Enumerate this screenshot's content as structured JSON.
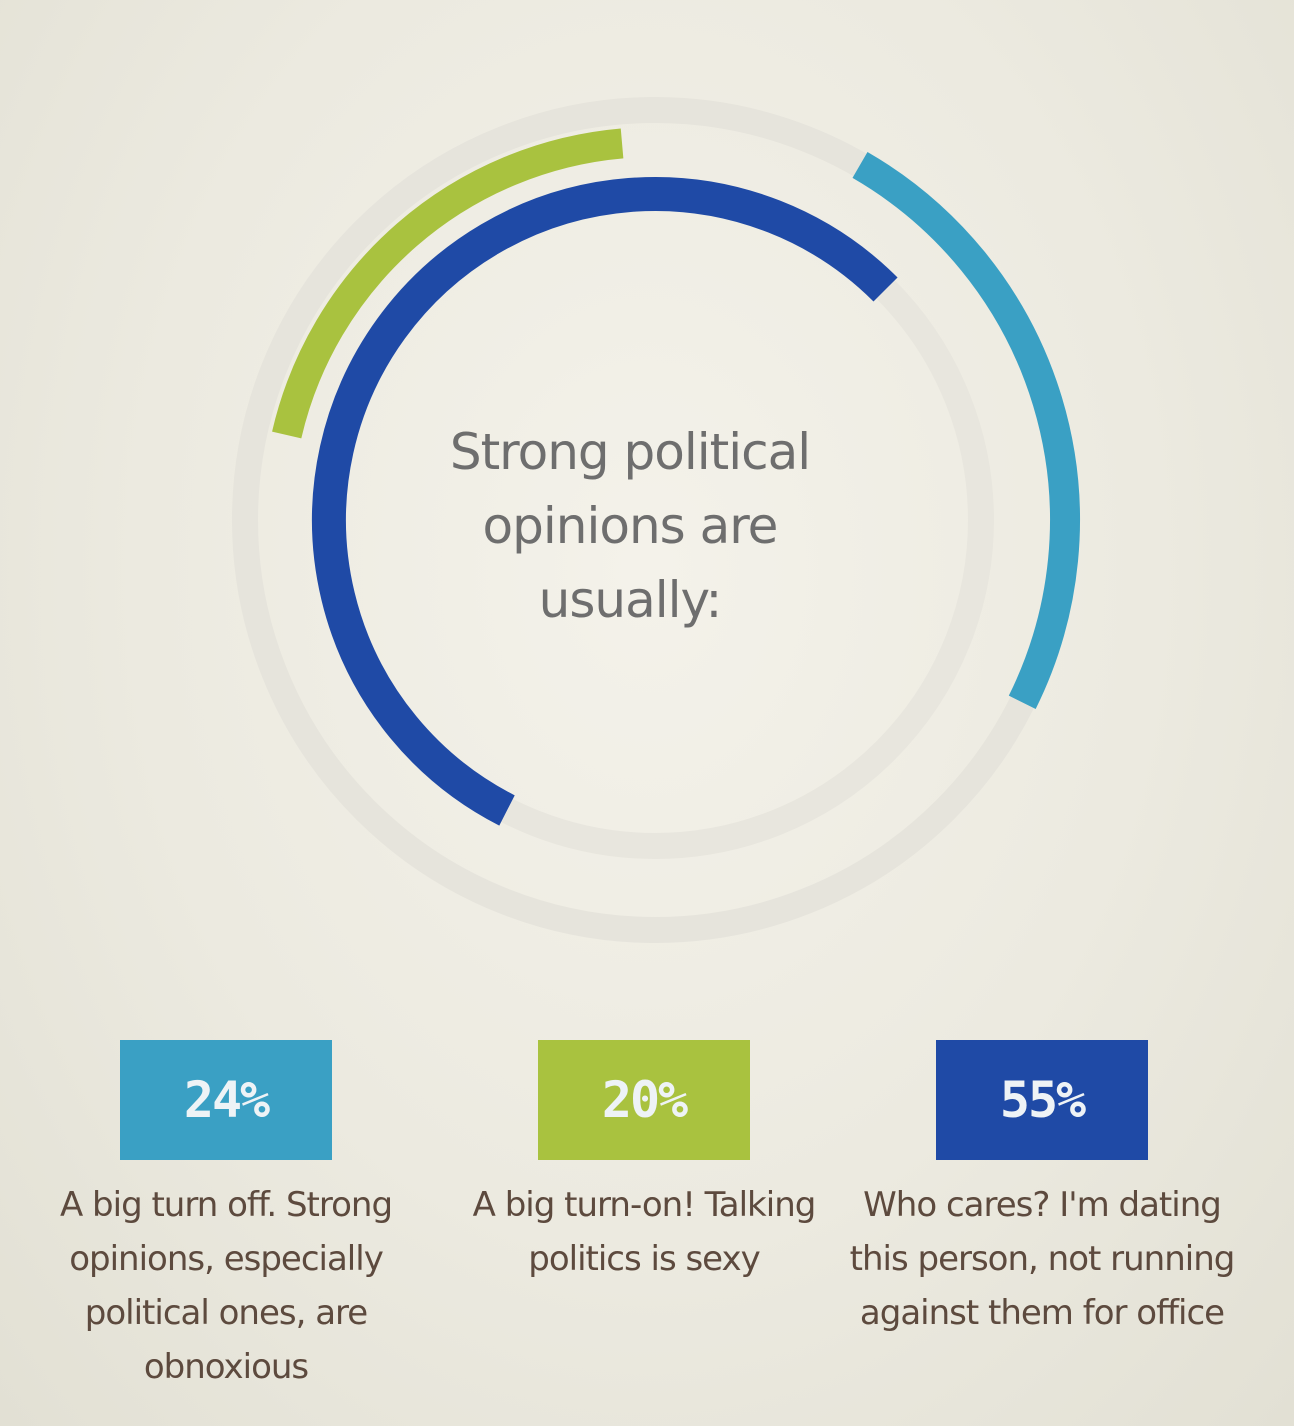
{
  "chart_data": {
    "type": "radial-bar",
    "center_title": "Strong political opinions are usually:",
    "series": [
      {
        "label": "A big turn off. Strong opinions, especially political ones, are obnoxious",
        "value": 24,
        "display": "24%",
        "color": "#3aa0c4"
      },
      {
        "label": "A big turn-on! Talking politics is sexy",
        "value": 20,
        "display": "20%",
        "color": "#a9c23f"
      },
      {
        "label": "Who cares? I'm dating this person, not running against them for office",
        "value": 55,
        "display": "55%",
        "color": "#1f4aa6"
      }
    ]
  }
}
